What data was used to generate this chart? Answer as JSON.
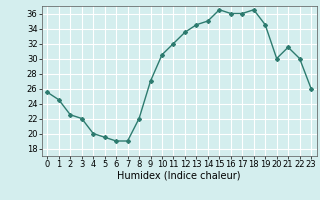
{
  "x": [
    0,
    1,
    2,
    3,
    4,
    5,
    6,
    7,
    8,
    9,
    10,
    11,
    12,
    13,
    14,
    15,
    16,
    17,
    18,
    19,
    20,
    21,
    22,
    23
  ],
  "y": [
    25.5,
    24.5,
    22.5,
    22.0,
    20.0,
    19.5,
    19.0,
    19.0,
    22.0,
    27.0,
    30.5,
    32.0,
    33.5,
    34.5,
    35.0,
    36.5,
    36.0,
    36.0,
    36.5,
    34.5,
    30.0,
    31.5,
    30.0,
    26.0
  ],
  "xlabel": "Humidex (Indice chaleur)",
  "ylim": [
    17,
    37
  ],
  "xlim": [
    -0.5,
    23.5
  ],
  "yticks": [
    18,
    20,
    22,
    24,
    26,
    28,
    30,
    32,
    34,
    36
  ],
  "xticks": [
    0,
    1,
    2,
    3,
    4,
    5,
    6,
    7,
    8,
    9,
    10,
    11,
    12,
    13,
    14,
    15,
    16,
    17,
    18,
    19,
    20,
    21,
    22,
    23
  ],
  "line_color": "#2d7b6f",
  "marker": "D",
  "marker_size": 2.0,
  "bg_color": "#d4eeee",
  "grid_color": "#ffffff",
  "line_width": 1.0,
  "tick_fontsize": 6.0,
  "xlabel_fontsize": 7.0
}
